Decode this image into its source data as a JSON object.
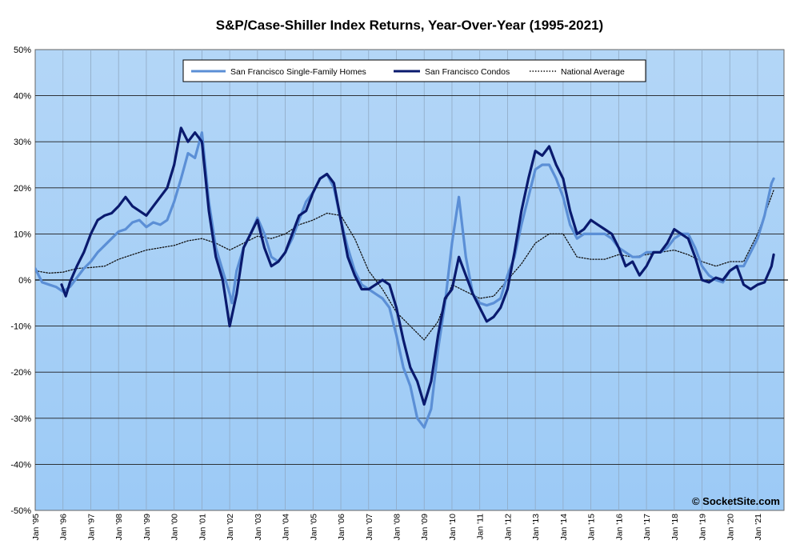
{
  "chart_data": {
    "type": "line",
    "title": "S&P/Case-Shiller Index Returns, Year-Over-Year (1995-2021)",
    "credit": "© SocketSite.com",
    "xlabel": "",
    "ylabel": "",
    "x_range": [
      1995.0,
      2021.95
    ],
    "ylim": [
      -50,
      50
    ],
    "y_ticks": [
      50,
      40,
      30,
      20,
      10,
      0,
      -10,
      -20,
      -30,
      -40,
      -50
    ],
    "y_tick_labels": [
      "50%",
      "40%",
      "30%",
      "20%",
      "10%",
      "0%",
      "-10%",
      "-20%",
      "-30%",
      "-40%",
      "-50%"
    ],
    "x_ticks": [
      1995,
      1996,
      1997,
      1998,
      1999,
      2000,
      2001,
      2002,
      2003,
      2004,
      2005,
      2006,
      2007,
      2008,
      2009,
      2010,
      2011,
      2012,
      2013,
      2014,
      2015,
      2016,
      2017,
      2018,
      2019,
      2020,
      2021
    ],
    "x_tick_labels": [
      "Jan '95",
      "Jan '96",
      "Jan '97",
      "Jan '98",
      "Jan '99",
      "Jan '00",
      "Jan '01",
      "Jan '02",
      "Jan '03",
      "Jan '04",
      "Jan '05",
      "Jan '06",
      "Jan '07",
      "Jan '08",
      "Jan '09",
      "Jan '10",
      "Jan '11",
      "Jan '12",
      "Jan '13",
      "Jan '14",
      "Jan '15",
      "Jan '16",
      "Jan '17",
      "Jan '18",
      "Jan '19",
      "Jan '20",
      "Jan '21"
    ],
    "grid": true,
    "legend_position": "top-center",
    "background_gradient": [
      "#b3d6f7",
      "#9ccaf6"
    ],
    "series": [
      {
        "name": "San Francisco Single-Family Homes",
        "style": "solid",
        "color": "#5b8fd6",
        "points": [
          [
            1995.0,
            2.5
          ],
          [
            1995.25,
            -0.5
          ],
          [
            1995.5,
            -1
          ],
          [
            1995.75,
            -1.5
          ],
          [
            1996.0,
            -2.5
          ],
          [
            1996.25,
            -1.5
          ],
          [
            1996.5,
            0.5
          ],
          [
            1996.75,
            2.5
          ],
          [
            1997.0,
            4
          ],
          [
            1997.25,
            6
          ],
          [
            1997.5,
            7.5
          ],
          [
            1997.75,
            9
          ],
          [
            1998.0,
            10.5
          ],
          [
            1998.25,
            11
          ],
          [
            1998.5,
            12.5
          ],
          [
            1998.75,
            13
          ],
          [
            1999.0,
            11.5
          ],
          [
            1999.25,
            12.5
          ],
          [
            1999.5,
            12
          ],
          [
            1999.75,
            13
          ],
          [
            2000.0,
            17
          ],
          [
            2000.25,
            22
          ],
          [
            2000.5,
            27.5
          ],
          [
            2000.75,
            26.5
          ],
          [
            2001.0,
            32
          ],
          [
            2001.25,
            17
          ],
          [
            2001.5,
            7
          ],
          [
            2001.75,
            2
          ],
          [
            2002.0,
            -3
          ],
          [
            2002.08,
            -5
          ],
          [
            2002.25,
            2
          ],
          [
            2002.5,
            7
          ],
          [
            2002.75,
            10
          ],
          [
            2003.0,
            13.5
          ],
          [
            2003.25,
            10
          ],
          [
            2003.5,
            5
          ],
          [
            2003.75,
            4
          ],
          [
            2004.0,
            6
          ],
          [
            2004.25,
            9
          ],
          [
            2004.5,
            13
          ],
          [
            2004.75,
            17
          ],
          [
            2005.0,
            19
          ],
          [
            2005.25,
            22
          ],
          [
            2005.5,
            23
          ],
          [
            2005.75,
            20
          ],
          [
            2006.0,
            13
          ],
          [
            2006.25,
            7
          ],
          [
            2006.5,
            2
          ],
          [
            2006.75,
            -1
          ],
          [
            2007.0,
            -2
          ],
          [
            2007.25,
            -3
          ],
          [
            2007.5,
            -4
          ],
          [
            2007.75,
            -6
          ],
          [
            2008.0,
            -12
          ],
          [
            2008.25,
            -19
          ],
          [
            2008.5,
            -23
          ],
          [
            2008.75,
            -30
          ],
          [
            2009.0,
            -32
          ],
          [
            2009.25,
            -28
          ],
          [
            2009.5,
            -15
          ],
          [
            2009.75,
            -5
          ],
          [
            2010.0,
            8
          ],
          [
            2010.25,
            18
          ],
          [
            2010.5,
            5
          ],
          [
            2010.75,
            -3
          ],
          [
            2011.0,
            -5
          ],
          [
            2011.25,
            -5.5
          ],
          [
            2011.5,
            -5
          ],
          [
            2011.75,
            -4
          ],
          [
            2012.0,
            1
          ],
          [
            2012.25,
            5
          ],
          [
            2012.5,
            12
          ],
          [
            2012.75,
            18
          ],
          [
            2013.0,
            24
          ],
          [
            2013.25,
            25
          ],
          [
            2013.5,
            25
          ],
          [
            2013.75,
            22
          ],
          [
            2014.0,
            18
          ],
          [
            2014.25,
            12
          ],
          [
            2014.5,
            9
          ],
          [
            2014.75,
            10
          ],
          [
            2015.0,
            10
          ],
          [
            2015.25,
            10
          ],
          [
            2015.5,
            10
          ],
          [
            2015.75,
            9
          ],
          [
            2016.0,
            7
          ],
          [
            2016.25,
            6
          ],
          [
            2016.5,
            5
          ],
          [
            2016.75,
            5
          ],
          [
            2017.0,
            6
          ],
          [
            2017.25,
            6
          ],
          [
            2017.5,
            6
          ],
          [
            2017.75,
            7
          ],
          [
            2018.0,
            9
          ],
          [
            2018.25,
            10
          ],
          [
            2018.5,
            10
          ],
          [
            2018.75,
            7
          ],
          [
            2019.0,
            3
          ],
          [
            2019.25,
            1
          ],
          [
            2019.5,
            0
          ],
          [
            2019.75,
            -0.5
          ],
          [
            2020.0,
            2
          ],
          [
            2020.25,
            3
          ],
          [
            2020.5,
            3
          ],
          [
            2020.75,
            6
          ],
          [
            2021.0,
            9
          ],
          [
            2021.25,
            14
          ],
          [
            2021.5,
            21
          ],
          [
            2021.58,
            22
          ]
        ]
      },
      {
        "name": "San Francisco Condos",
        "style": "solid",
        "color": "#0a1a6e",
        "points": [
          [
            1995.95,
            -1
          ],
          [
            1996.1,
            -3.5
          ],
          [
            1996.25,
            -0.5
          ],
          [
            1996.5,
            3
          ],
          [
            1996.75,
            6
          ],
          [
            1997.0,
            10
          ],
          [
            1997.25,
            13
          ],
          [
            1997.5,
            14
          ],
          [
            1997.75,
            14.5
          ],
          [
            1998.0,
            16
          ],
          [
            1998.25,
            18
          ],
          [
            1998.5,
            16
          ],
          [
            1998.75,
            15
          ],
          [
            1999.0,
            14
          ],
          [
            1999.25,
            16
          ],
          [
            1999.5,
            18
          ],
          [
            1999.75,
            20
          ],
          [
            2000.0,
            25
          ],
          [
            2000.25,
            33
          ],
          [
            2000.5,
            30
          ],
          [
            2000.75,
            32
          ],
          [
            2001.0,
            30
          ],
          [
            2001.25,
            15
          ],
          [
            2001.5,
            5
          ],
          [
            2001.75,
            0
          ],
          [
            2002.0,
            -10
          ],
          [
            2002.25,
            -3
          ],
          [
            2002.5,
            7
          ],
          [
            2002.75,
            10
          ],
          [
            2003.0,
            13
          ],
          [
            2003.25,
            7
          ],
          [
            2003.5,
            3
          ],
          [
            2003.75,
            4
          ],
          [
            2004.0,
            6
          ],
          [
            2004.25,
            10
          ],
          [
            2004.5,
            14
          ],
          [
            2004.75,
            15
          ],
          [
            2005.0,
            19
          ],
          [
            2005.25,
            22
          ],
          [
            2005.5,
            23
          ],
          [
            2005.75,
            21
          ],
          [
            2006.0,
            13
          ],
          [
            2006.25,
            5
          ],
          [
            2006.5,
            1
          ],
          [
            2006.75,
            -2
          ],
          [
            2007.0,
            -2
          ],
          [
            2007.25,
            -1
          ],
          [
            2007.5,
            0
          ],
          [
            2007.75,
            -1
          ],
          [
            2008.0,
            -6
          ],
          [
            2008.25,
            -13
          ],
          [
            2008.5,
            -19
          ],
          [
            2008.75,
            -22
          ],
          [
            2009.0,
            -27
          ],
          [
            2009.25,
            -22
          ],
          [
            2009.5,
            -12
          ],
          [
            2009.75,
            -4
          ],
          [
            2010.0,
            -2
          ],
          [
            2010.25,
            5
          ],
          [
            2010.5,
            1
          ],
          [
            2010.75,
            -3
          ],
          [
            2011.0,
            -6
          ],
          [
            2011.25,
            -9
          ],
          [
            2011.5,
            -8
          ],
          [
            2011.75,
            -6
          ],
          [
            2012.0,
            -2
          ],
          [
            2012.25,
            6
          ],
          [
            2012.5,
            15
          ],
          [
            2012.75,
            22
          ],
          [
            2013.0,
            28
          ],
          [
            2013.25,
            27
          ],
          [
            2013.5,
            29
          ],
          [
            2013.75,
            25
          ],
          [
            2014.0,
            22
          ],
          [
            2014.25,
            15
          ],
          [
            2014.5,
            10
          ],
          [
            2014.75,
            11
          ],
          [
            2015.0,
            13
          ],
          [
            2015.25,
            12
          ],
          [
            2015.5,
            11
          ],
          [
            2015.75,
            10
          ],
          [
            2016.0,
            7
          ],
          [
            2016.25,
            3
          ],
          [
            2016.5,
            4
          ],
          [
            2016.75,
            1
          ],
          [
            2017.0,
            3
          ],
          [
            2017.25,
            6
          ],
          [
            2017.5,
            6
          ],
          [
            2017.75,
            8
          ],
          [
            2018.0,
            11
          ],
          [
            2018.25,
            10
          ],
          [
            2018.5,
            9
          ],
          [
            2018.75,
            5
          ],
          [
            2019.0,
            0
          ],
          [
            2019.25,
            -0.5
          ],
          [
            2019.5,
            0.5
          ],
          [
            2019.75,
            0
          ],
          [
            2020.0,
            2
          ],
          [
            2020.25,
            3
          ],
          [
            2020.5,
            -1
          ],
          [
            2020.75,
            -2
          ],
          [
            2021.0,
            -1
          ],
          [
            2021.25,
            -0.5
          ],
          [
            2021.5,
            3
          ],
          [
            2021.58,
            5.5
          ]
        ]
      },
      {
        "name": "National Average",
        "style": "dotted",
        "color": "#111111",
        "points": [
          [
            1995.0,
            2
          ],
          [
            1995.5,
            1.5
          ],
          [
            1996.0,
            1.7
          ],
          [
            1996.5,
            2.5
          ],
          [
            1997.0,
            2.7
          ],
          [
            1997.5,
            3
          ],
          [
            1998.0,
            4.5
          ],
          [
            1998.5,
            5.5
          ],
          [
            1999.0,
            6.5
          ],
          [
            1999.5,
            7
          ],
          [
            2000.0,
            7.5
          ],
          [
            2000.5,
            8.5
          ],
          [
            2001.0,
            9
          ],
          [
            2001.5,
            8
          ],
          [
            2002.0,
            6.5
          ],
          [
            2002.5,
            8
          ],
          [
            2003.0,
            9.5
          ],
          [
            2003.5,
            9
          ],
          [
            2004.0,
            10
          ],
          [
            2004.5,
            12
          ],
          [
            2005.0,
            13
          ],
          [
            2005.5,
            14.5
          ],
          [
            2006.0,
            14
          ],
          [
            2006.5,
            9
          ],
          [
            2007.0,
            2
          ],
          [
            2007.5,
            -2
          ],
          [
            2008.0,
            -7
          ],
          [
            2008.5,
            -10
          ],
          [
            2009.0,
            -13
          ],
          [
            2009.5,
            -9
          ],
          [
            2010.0,
            -1
          ],
          [
            2010.5,
            -2.5
          ],
          [
            2011.0,
            -4
          ],
          [
            2011.5,
            -3.5
          ],
          [
            2012.0,
            0
          ],
          [
            2012.5,
            3.5
          ],
          [
            2013.0,
            8
          ],
          [
            2013.5,
            10
          ],
          [
            2014.0,
            10
          ],
          [
            2014.5,
            5
          ],
          [
            2015.0,
            4.5
          ],
          [
            2015.5,
            4.5
          ],
          [
            2016.0,
            5.5
          ],
          [
            2016.5,
            5
          ],
          [
            2017.0,
            5.5
          ],
          [
            2017.5,
            6
          ],
          [
            2018.0,
            6.5
          ],
          [
            2018.5,
            5.5
          ],
          [
            2019.0,
            4
          ],
          [
            2019.5,
            3
          ],
          [
            2020.0,
            4
          ],
          [
            2020.5,
            4
          ],
          [
            2021.0,
            10
          ],
          [
            2021.58,
            19.5
          ]
        ]
      }
    ]
  }
}
